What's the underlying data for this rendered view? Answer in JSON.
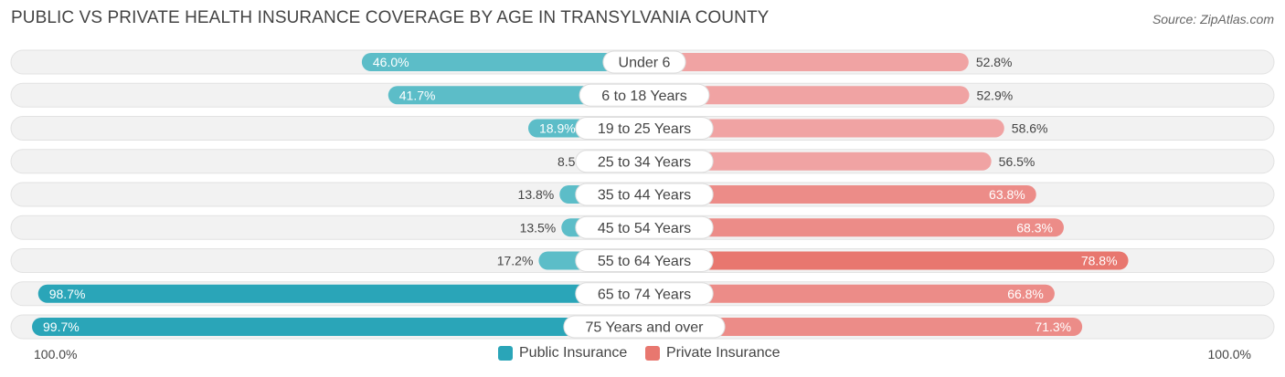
{
  "title": "PUBLIC VS PRIVATE HEALTH INSURANCE COVERAGE BY AGE IN TRANSYLVANIA COUNTY",
  "source": "Source: ZipAtlas.com",
  "colors": {
    "public": "#5cbdc8",
    "public_strong": "#2aa5b8",
    "private": "#f0a3a3",
    "private_strong": "#e8776f",
    "track": "#efefef"
  },
  "legend": {
    "public_label": "Public Insurance",
    "private_label": "Private Insurance"
  },
  "axis": {
    "left_label": "100.0%",
    "right_label": "100.0%"
  },
  "chart_data": {
    "type": "bar",
    "orientation": "horizontal-diverging",
    "title": "PUBLIC VS PRIVATE HEALTH INSURANCE COVERAGE BY AGE IN TRANSYLVANIA COUNTY",
    "categories": [
      "Under 6",
      "6 to 18 Years",
      "19 to 25 Years",
      "25 to 34 Years",
      "35 to 44 Years",
      "45 to 54 Years",
      "55 to 64 Years",
      "65 to 74 Years",
      "75 Years and over"
    ],
    "series": [
      {
        "name": "Public Insurance",
        "values": [
          46.0,
          41.7,
          18.9,
          8.5,
          13.8,
          13.5,
          17.2,
          98.7,
          99.7
        ],
        "labels": [
          "46.0%",
          "41.7%",
          "18.9%",
          "8.5%",
          "13.8%",
          "13.5%",
          "17.2%",
          "98.7%",
          "99.7%"
        ]
      },
      {
        "name": "Private Insurance",
        "values": [
          52.8,
          52.9,
          58.6,
          56.5,
          63.8,
          68.3,
          78.8,
          66.8,
          71.3
        ],
        "labels": [
          "52.8%",
          "52.9%",
          "58.6%",
          "56.5%",
          "63.8%",
          "68.3%",
          "78.8%",
          "66.8%",
          "71.3%"
        ]
      }
    ],
    "xlim": [
      -100,
      100
    ],
    "legend_position": "bottom-center"
  }
}
